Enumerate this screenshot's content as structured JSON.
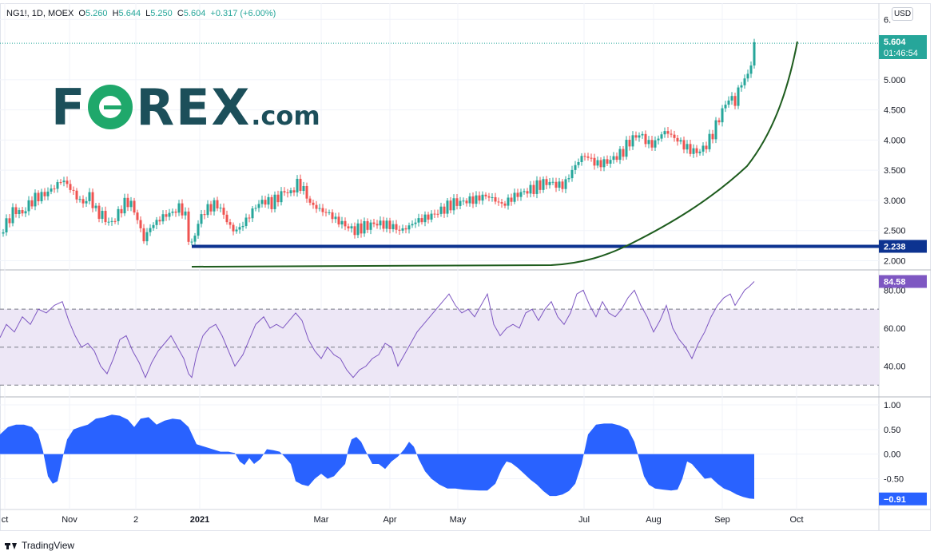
{
  "header": {
    "symbol": "NG1!, 1D, MOEX",
    "o_label": "O",
    "o_value": "5.260",
    "h_label": "H",
    "h_value": "5.644",
    "l_label": "L",
    "l_value": "5.250",
    "c_label": "C",
    "c_value": "5.604",
    "change": "+0.317 (+6.00%)"
  },
  "currency": "USD",
  "logo": {
    "text_a": "F",
    "text_b": "REX",
    "text_c": ".com"
  },
  "footer": {
    "brand": "TradingView"
  },
  "colors": {
    "up": "#26a69a",
    "down": "#ef5350",
    "support": "#0d3390",
    "curve": "#1e5c1e",
    "rsi": "#7e57c2",
    "rsi_band": "#ede7f6",
    "osc": "#2962ff"
  },
  "chart_data": [
    {
      "type": "candlestick",
      "title": "",
      "y_ticks": [
        "2.000",
        "2.500",
        "3.000",
        "3.500",
        "4.000",
        "4.500",
        "5.000",
        "6."
      ],
      "ylim": [
        1.85,
        6.25
      ],
      "x_ticks": [
        "ct",
        "Nov",
        "2",
        "2021",
        "Mar",
        "Apr",
        "May",
        "Jul",
        "Aug",
        "Sep",
        "Oct"
      ],
      "close_path": [
        [
          0,
          2.45
        ],
        [
          8,
          2.62
        ],
        [
          18,
          2.85
        ],
        [
          28,
          2.78
        ],
        [
          35,
          2.92
        ],
        [
          45,
          3.05
        ],
        [
          56,
          3.1
        ],
        [
          68,
          3.22
        ],
        [
          78,
          3.35
        ],
        [
          88,
          3.2
        ],
        [
          96,
          3.05
        ],
        [
          104,
          2.95
        ],
        [
          112,
          3.08
        ],
        [
          120,
          2.82
        ],
        [
          128,
          2.75
        ],
        [
          138,
          2.6
        ],
        [
          148,
          2.78
        ],
        [
          156,
          2.96
        ],
        [
          164,
          2.95
        ],
        [
          172,
          2.68
        ],
        [
          180,
          2.35
        ],
        [
          188,
          2.55
        ],
        [
          196,
          2.65
        ],
        [
          206,
          2.75
        ],
        [
          216,
          2.8
        ],
        [
          226,
          2.9
        ],
        [
          232,
          2.72
        ],
        [
          236,
          2.4
        ],
        [
          240,
          2.25
        ],
        [
          246,
          2.55
        ],
        [
          254,
          2.8
        ],
        [
          262,
          2.88
        ],
        [
          270,
          2.95
        ],
        [
          278,
          2.82
        ],
        [
          286,
          2.6
        ],
        [
          294,
          2.48
        ],
        [
          304,
          2.6
        ],
        [
          312,
          2.75
        ],
        [
          320,
          2.9
        ],
        [
          330,
          3.0
        ],
        [
          340,
          2.95
        ],
        [
          348,
          3.05
        ],
        [
          356,
          3.15
        ],
        [
          364,
          3.12
        ],
        [
          372,
          3.28
        ],
        [
          380,
          3.18
        ],
        [
          388,
          2.95
        ],
        [
          396,
          2.88
        ],
        [
          404,
          2.82
        ],
        [
          412,
          2.78
        ],
        [
          420,
          2.68
        ],
        [
          428,
          2.62
        ],
        [
          436,
          2.55
        ],
        [
          444,
          2.5
        ],
        [
          452,
          2.55
        ],
        [
          460,
          2.58
        ],
        [
          470,
          2.62
        ],
        [
          480,
          2.6
        ],
        [
          490,
          2.58
        ],
        [
          500,
          2.5
        ],
        [
          510,
          2.55
        ],
        [
          520,
          2.65
        ],
        [
          530,
          2.7
        ],
        [
          540,
          2.75
        ],
        [
          550,
          2.82
        ],
        [
          558,
          2.88
        ],
        [
          566,
          2.95
        ],
        [
          576,
          2.97
        ],
        [
          586,
          3.0
        ],
        [
          596,
          3.02
        ],
        [
          606,
          3.08
        ],
        [
          614,
          3.05
        ],
        [
          622,
          2.98
        ],
        [
          630,
          2.92
        ],
        [
          638,
          3.02
        ],
        [
          648,
          3.1
        ],
        [
          658,
          3.15
        ],
        [
          668,
          3.2
        ],
        [
          678,
          3.28
        ],
        [
          688,
          3.3
        ],
        [
          698,
          3.25
        ],
        [
          706,
          3.25
        ],
        [
          714,
          3.45
        ],
        [
          722,
          3.62
        ],
        [
          730,
          3.75
        ],
        [
          738,
          3.7
        ],
        [
          746,
          3.6
        ],
        [
          754,
          3.62
        ],
        [
          762,
          3.65
        ],
        [
          770,
          3.72
        ],
        [
          778,
          3.78
        ],
        [
          786,
          3.95
        ],
        [
          794,
          4.05
        ],
        [
          802,
          4.1
        ],
        [
          810,
          3.95
        ],
        [
          818,
          3.92
        ],
        [
          826,
          4.08
        ],
        [
          834,
          4.15
        ],
        [
          842,
          4.05
        ],
        [
          850,
          3.98
        ],
        [
          858,
          3.88
        ],
        [
          866,
          3.82
        ],
        [
          874,
          3.8
        ],
        [
          882,
          3.88
        ],
        [
          890,
          4.05
        ],
        [
          898,
          4.3
        ],
        [
          906,
          4.55
        ],
        [
          914,
          4.72
        ],
        [
          920,
          4.62
        ],
        [
          926,
          4.92
        ],
        [
          932,
          5.0
        ],
        [
          936,
          5.1
        ],
        [
          940,
          5.25
        ],
        [
          944,
          5.6
        ]
      ],
      "last_price": "5.604",
      "countdown": "01:46:54",
      "support_level": "2.238",
      "support_value": 2.238
    },
    {
      "type": "line",
      "title": "",
      "y_ticks": [
        "40.00",
        "60.00",
        "80.00"
      ],
      "ylim": [
        27,
        92
      ],
      "band": [
        30,
        70
      ],
      "midline": 50,
      "last_value": "84.58",
      "points": [
        [
          0,
          55
        ],
        [
          8,
          62
        ],
        [
          18,
          58
        ],
        [
          28,
          66
        ],
        [
          38,
          62
        ],
        [
          48,
          70
        ],
        [
          58,
          68
        ],
        [
          68,
          72
        ],
        [
          78,
          74
        ],
        [
          86,
          64
        ],
        [
          94,
          56
        ],
        [
          102,
          50
        ],
        [
          110,
          52
        ],
        [
          118,
          48
        ],
        [
          126,
          40
        ],
        [
          134,
          36
        ],
        [
          142,
          44
        ],
        [
          150,
          54
        ],
        [
          158,
          56
        ],
        [
          166,
          48
        ],
        [
          174,
          42
        ],
        [
          182,
          34
        ],
        [
          190,
          42
        ],
        [
          198,
          48
        ],
        [
          206,
          52
        ],
        [
          214,
          56
        ],
        [
          222,
          50
        ],
        [
          230,
          44
        ],
        [
          236,
          36
        ],
        [
          240,
          34
        ],
        [
          246,
          46
        ],
        [
          254,
          56
        ],
        [
          262,
          60
        ],
        [
          270,
          62
        ],
        [
          278,
          56
        ],
        [
          286,
          48
        ],
        [
          294,
          40
        ],
        [
          304,
          46
        ],
        [
          312,
          54
        ],
        [
          320,
          62
        ],
        [
          330,
          66
        ],
        [
          338,
          60
        ],
        [
          346,
          62
        ],
        [
          354,
          60
        ],
        [
          362,
          64
        ],
        [
          370,
          68
        ],
        [
          378,
          64
        ],
        [
          386,
          54
        ],
        [
          394,
          48
        ],
        [
          402,
          44
        ],
        [
          410,
          50
        ],
        [
          418,
          46
        ],
        [
          426,
          44
        ],
        [
          434,
          38
        ],
        [
          442,
          34
        ],
        [
          450,
          38
        ],
        [
          458,
          40
        ],
        [
          466,
          44
        ],
        [
          474,
          46
        ],
        [
          482,
          52
        ],
        [
          490,
          50
        ],
        [
          498,
          40
        ],
        [
          506,
          46
        ],
        [
          514,
          52
        ],
        [
          522,
          58
        ],
        [
          530,
          62
        ],
        [
          538,
          66
        ],
        [
          546,
          70
        ],
        [
          554,
          74
        ],
        [
          562,
          78
        ],
        [
          570,
          72
        ],
        [
          578,
          68
        ],
        [
          586,
          70
        ],
        [
          594,
          66
        ],
        [
          602,
          72
        ],
        [
          610,
          78
        ],
        [
          618,
          62
        ],
        [
          626,
          56
        ],
        [
          634,
          60
        ],
        [
          642,
          62
        ],
        [
          650,
          60
        ],
        [
          658,
          68
        ],
        [
          666,
          70
        ],
        [
          674,
          64
        ],
        [
          682,
          70
        ],
        [
          690,
          74
        ],
        [
          698,
          66
        ],
        [
          706,
          62
        ],
        [
          714,
          68
        ],
        [
          722,
          78
        ],
        [
          730,
          80
        ],
        [
          738,
          72
        ],
        [
          746,
          66
        ],
        [
          754,
          74
        ],
        [
          762,
          68
        ],
        [
          770,
          66
        ],
        [
          778,
          70
        ],
        [
          786,
          76
        ],
        [
          794,
          80
        ],
        [
          802,
          72
        ],
        [
          810,
          66
        ],
        [
          818,
          58
        ],
        [
          826,
          64
        ],
        [
          834,
          72
        ],
        [
          842,
          60
        ],
        [
          850,
          54
        ],
        [
          858,
          50
        ],
        [
          866,
          44
        ],
        [
          874,
          52
        ],
        [
          882,
          58
        ],
        [
          890,
          66
        ],
        [
          898,
          72
        ],
        [
          906,
          76
        ],
        [
          914,
          78
        ],
        [
          920,
          72
        ],
        [
          926,
          76
        ],
        [
          932,
          80
        ],
        [
          938,
          82
        ],
        [
          944,
          84.58
        ]
      ]
    },
    {
      "type": "area",
      "title": "",
      "y_ticks": [
        "-0.50",
        "0.00",
        "0.50",
        "1.00"
      ],
      "ylim": [
        -0.98,
        1.1
      ],
      "last_value": "−0.91",
      "points": [
        [
          0,
          0.4
        ],
        [
          10,
          0.55
        ],
        [
          20,
          0.6
        ],
        [
          30,
          0.6
        ],
        [
          40,
          0.55
        ],
        [
          48,
          0.4
        ],
        [
          54,
          0.05
        ],
        [
          60,
          -0.45
        ],
        [
          66,
          -0.6
        ],
        [
          72,
          -0.55
        ],
        [
          78,
          -0.1
        ],
        [
          84,
          0.3
        ],
        [
          92,
          0.5
        ],
        [
          100,
          0.55
        ],
        [
          110,
          0.6
        ],
        [
          120,
          0.72
        ],
        [
          130,
          0.75
        ],
        [
          140,
          0.8
        ],
        [
          150,
          0.78
        ],
        [
          160,
          0.7
        ],
        [
          168,
          0.55
        ],
        [
          176,
          0.72
        ],
        [
          186,
          0.75
        ],
        [
          196,
          0.6
        ],
        [
          206,
          0.68
        ],
        [
          216,
          0.72
        ],
        [
          226,
          0.7
        ],
        [
          236,
          0.55
        ],
        [
          246,
          0.2
        ],
        [
          256,
          0.15
        ],
        [
          266,
          0.1
        ],
        [
          276,
          0.05
        ],
        [
          286,
          0.05
        ],
        [
          294,
          0.02
        ],
        [
          300,
          -0.15
        ],
        [
          306,
          -0.22
        ],
        [
          312,
          -0.08
        ],
        [
          318,
          -0.2
        ],
        [
          326,
          -0.1
        ],
        [
          334,
          0.1
        ],
        [
          342,
          0.08
        ],
        [
          350,
          0.05
        ],
        [
          356,
          -0.05
        ],
        [
          364,
          -0.2
        ],
        [
          370,
          -0.55
        ],
        [
          378,
          -0.62
        ],
        [
          386,
          -0.65
        ],
        [
          394,
          -0.5
        ],
        [
          402,
          -0.4
        ],
        [
          410,
          -0.5
        ],
        [
          418,
          -0.45
        ],
        [
          426,
          -0.3
        ],
        [
          432,
          -0.2
        ],
        [
          436,
          0.1
        ],
        [
          440,
          0.3
        ],
        [
          446,
          0.35
        ],
        [
          452,
          0.25
        ],
        [
          458,
          0.05
        ],
        [
          466,
          -0.2
        ],
        [
          474,
          -0.2
        ],
        [
          482,
          -0.3
        ],
        [
          490,
          -0.15
        ],
        [
          498,
          -0.05
        ],
        [
          506,
          0.1
        ],
        [
          512,
          0.25
        ],
        [
          518,
          0.15
        ],
        [
          524,
          -0.1
        ],
        [
          532,
          -0.35
        ],
        [
          540,
          -0.5
        ],
        [
          550,
          -0.62
        ],
        [
          560,
          -0.7
        ],
        [
          570,
          -0.7
        ],
        [
          580,
          -0.72
        ],
        [
          590,
          -0.73
        ],
        [
          600,
          -0.74
        ],
        [
          610,
          -0.74
        ],
        [
          620,
          -0.6
        ],
        [
          628,
          -0.3
        ],
        [
          634,
          -0.15
        ],
        [
          640,
          -0.18
        ],
        [
          648,
          -0.28
        ],
        [
          656,
          -0.4
        ],
        [
          664,
          -0.52
        ],
        [
          672,
          -0.62
        ],
        [
          680,
          -0.75
        ],
        [
          688,
          -0.85
        ],
        [
          696,
          -0.85
        ],
        [
          704,
          -0.82
        ],
        [
          712,
          -0.75
        ],
        [
          720,
          -0.6
        ],
        [
          728,
          -0.2
        ],
        [
          736,
          0.4
        ],
        [
          746,
          0.6
        ],
        [
          756,
          0.62
        ],
        [
          766,
          0.62
        ],
        [
          776,
          0.58
        ],
        [
          786,
          0.5
        ],
        [
          794,
          0.25
        ],
        [
          800,
          -0.1
        ],
        [
          806,
          -0.45
        ],
        [
          812,
          -0.62
        ],
        [
          820,
          -0.7
        ],
        [
          830,
          -0.72
        ],
        [
          840,
          -0.74
        ],
        [
          848,
          -0.72
        ],
        [
          854,
          -0.5
        ],
        [
          860,
          -0.15
        ],
        [
          866,
          -0.2
        ],
        [
          874,
          -0.35
        ],
        [
          882,
          -0.5
        ],
        [
          890,
          -0.48
        ],
        [
          898,
          -0.6
        ],
        [
          906,
          -0.7
        ],
        [
          914,
          -0.75
        ],
        [
          922,
          -0.82
        ],
        [
          930,
          -0.87
        ],
        [
          938,
          -0.9
        ],
        [
          944,
          -0.91
        ]
      ]
    }
  ]
}
